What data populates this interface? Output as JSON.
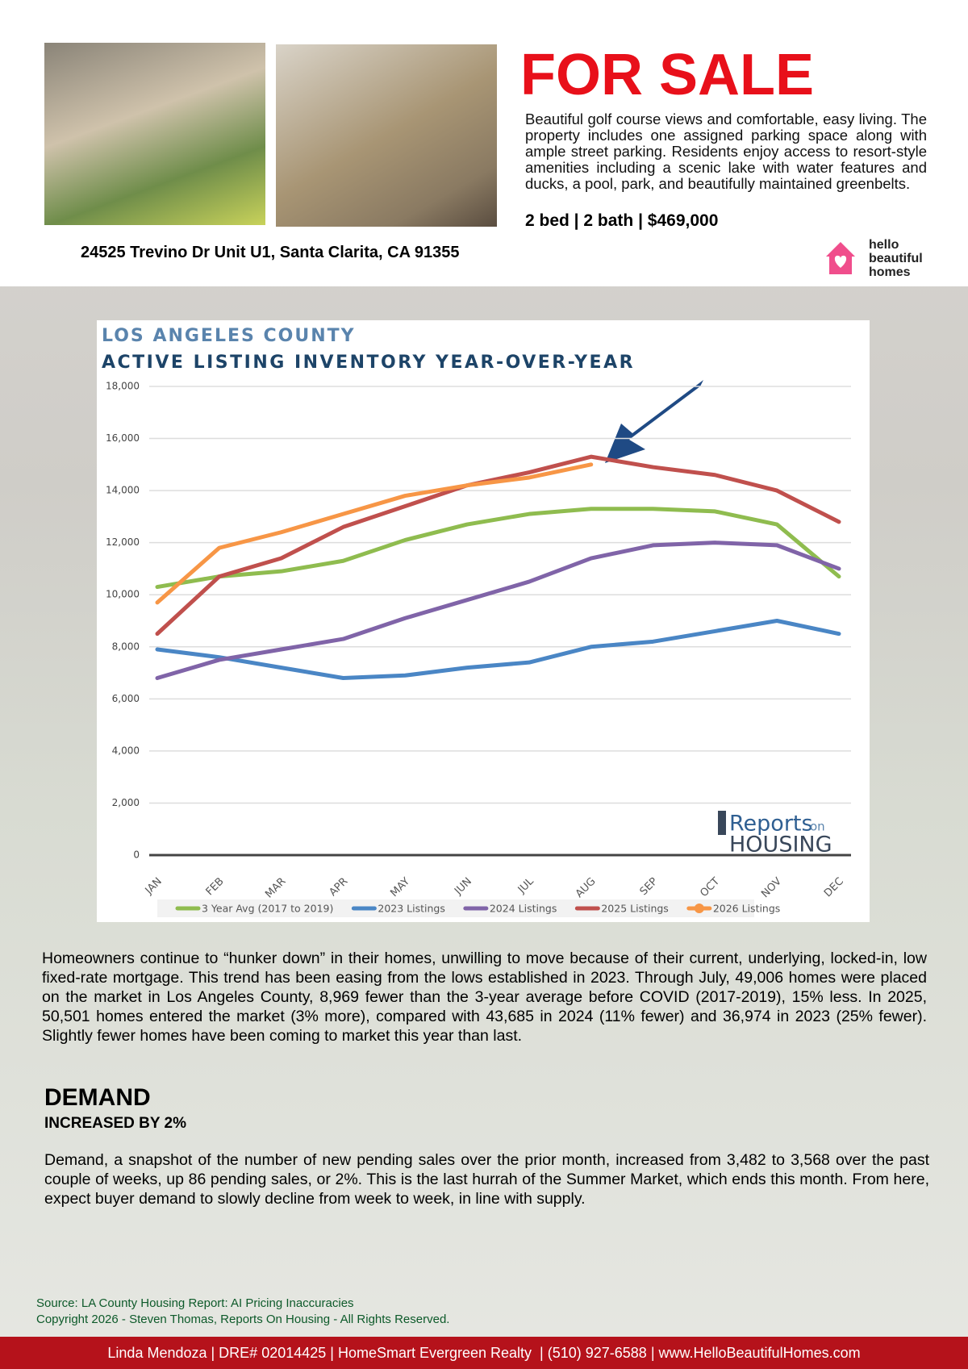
{
  "listing": {
    "title": "FOR SALE",
    "description": "Beautiful golf course views and comfortable, easy living. The property includes one assigned parking space along with ample street parking. Residents enjoy access to resort-style amenities including a scenic lake with water features and ducks, a pool, park, and beautifully maintained greenbelts.",
    "summary": "2 bed | 2 bath | $469,000",
    "address": "24525 Trevino Dr Unit U1, Santa Clarita, CA 91355",
    "logo": [
      "hello",
      "beautiful",
      "homes"
    ]
  },
  "chart_data": {
    "type": "line",
    "title": "LOS ANGELES COUNTY",
    "subtitle": "ACTIVE LISTING INVENTORY YEAR-OVER-YEAR",
    "categories": [
      "JAN",
      "FEB",
      "MAR",
      "APR",
      "MAY",
      "JUN",
      "JUL",
      "AUG",
      "SEP",
      "OCT",
      "NOV",
      "DEC"
    ],
    "series": [
      {
        "name": "3 Year Avg (2017 to 2019)",
        "color": "#8fbc4f",
        "values": [
          10300,
          10700,
          10900,
          11300,
          12100,
          12700,
          13100,
          13300,
          13300,
          13200,
          12700,
          10700
        ]
      },
      {
        "name": "2023 Listings",
        "color": "#4a86c5",
        "values": [
          7900,
          7600,
          7200,
          6800,
          6900,
          7200,
          7400,
          8000,
          8200,
          8600,
          9000,
          8500
        ]
      },
      {
        "name": "2024 Listings",
        "color": "#8064a8",
        "values": [
          6800,
          7500,
          7900,
          8300,
          9100,
          9800,
          10500,
          11400,
          11900,
          12000,
          11900,
          11000
        ]
      },
      {
        "name": "2025 Listings",
        "color": "#c0504d",
        "values": [
          8500,
          10700,
          11400,
          12600,
          13400,
          14200,
          14700,
          15300,
          14900,
          14600,
          14000,
          12800
        ]
      },
      {
        "name": "2026 Listings",
        "color": "#f79646",
        "values": [
          9700,
          11800,
          12400,
          13100,
          13800,
          14200,
          14500,
          15000,
          null,
          null,
          null,
          null
        ]
      }
    ],
    "ylim": [
      0,
      18000
    ],
    "yticks": [
      0,
      {
        "value": 2000,
        "label": "2,000"
      },
      {
        "value": 4000,
        "label": "4,000"
      },
      {
        "value": 6000,
        "label": "6,000"
      },
      {
        "value": 8000,
        "label": "8,000"
      },
      {
        "value": 10000,
        "label": "10,000"
      },
      {
        "value": 12000,
        "label": "12,000"
      },
      {
        "value": 14000,
        "label": "14,000"
      },
      {
        "value": 16000,
        "label": "16,000"
      },
      {
        "value": 18000,
        "label": "18,000"
      }
    ],
    "grid": true,
    "source_logo": [
      "Reports",
      "on",
      "HOUSING"
    ]
  },
  "article": {
    "paragraph": "Homeowners continue to “hunker down” in their homes, unwilling to move because of their current, underlying, locked-in, low fixed-rate mortgage. This trend has been easing from the lows established in 2023. Through July, 49,006 homes were placed on the market in Los Angeles County, 8,969 fewer than the 3-year average before COVID (2017-2019), 15% less. In 2025, 50,501 homes entered the market (3% more), compared with 43,685 in 2024 (11% fewer) and 36,974 in 2023 (25% fewer). Slightly fewer homes have been coming to market this year than last.",
    "heading": "DEMAND",
    "subheading": "INCREASED BY 2%",
    "body": "Demand, a snapshot of the number of new pending sales over the prior month, increased from 3,482 to 3,568 over the past couple of weeks, up 86 pending sales, or 2%. This is the last hurrah of the Summer Market, which ends this month. From here, expect buyer demand to slowly decline from week to week, in line with supply."
  },
  "footer": {
    "source": "Source: LA County Housing Report: AI Pricing Inaccuracies",
    "copyright": "Copyright 2026 - Steven Thomas, Reports On Housing - All Rights Reserved.",
    "contact": "Linda Mendoza | DRE# 02014425 | HomeSmart Evergreen Realty  | (510) 927-6588 | www.HelloBeautifulHomes.com"
  }
}
